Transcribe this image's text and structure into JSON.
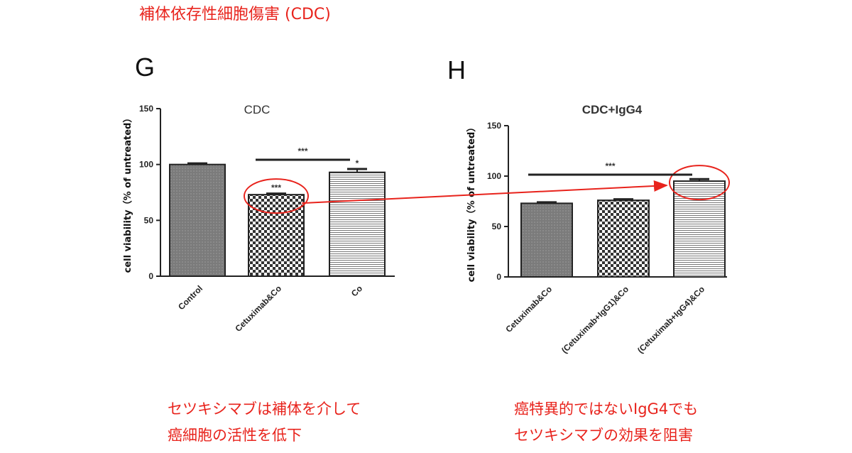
{
  "header": {
    "title": "補体依存性細胞傷害 (CDC)"
  },
  "panels": {
    "g_letter": "G",
    "h_letter": "H"
  },
  "captions": {
    "left": [
      "セツキシマブは補体を介して",
      "癌細胞の活性を低下"
    ],
    "right": [
      "癌特異的ではないIgG4でも",
      "セツキシマブの効果を阻害"
    ]
  },
  "colors": {
    "accent": "#e8231c",
    "axis": "#222222",
    "bar_dark": "#777777"
  },
  "chart_data": [
    {
      "type": "bar",
      "panel": "G",
      "title": "CDC",
      "ylabel": "cell viability（% of untreated）",
      "ylim": [
        0,
        150
      ],
      "yticks": [
        "0",
        "50",
        "100",
        "150"
      ],
      "categories": [
        "Control",
        "Cetuximab&Co",
        "Co"
      ],
      "values": [
        100,
        73,
        93
      ],
      "errors": [
        1,
        1,
        3
      ],
      "bar_labels": [
        "",
        "***",
        "*"
      ],
      "bracket": {
        "from": "Cetuximab&Co",
        "to": "Co",
        "label": "***"
      },
      "highlight": "Cetuximab&Co"
    },
    {
      "type": "bar",
      "panel": "H",
      "title": "CDC+IgG4",
      "ylabel": "cell viability（% of untreated）",
      "ylim": [
        0,
        150
      ],
      "yticks": [
        "0",
        "50",
        "100",
        "150"
      ],
      "categories": [
        "Cetuximab&Co",
        "(Cetuximab+IgG1)&Co",
        "(Cetuximab+IgG4)&Co"
      ],
      "values": [
        73,
        76,
        95
      ],
      "errors": [
        1,
        1,
        2
      ],
      "bar_labels": [
        "",
        "",
        ""
      ],
      "bracket": {
        "from": "Cetuximab&Co",
        "to": "(Cetuximab+IgG4)&Co",
        "label": "***"
      },
      "highlight": "(Cetuximab+IgG4)&Co"
    }
  ]
}
